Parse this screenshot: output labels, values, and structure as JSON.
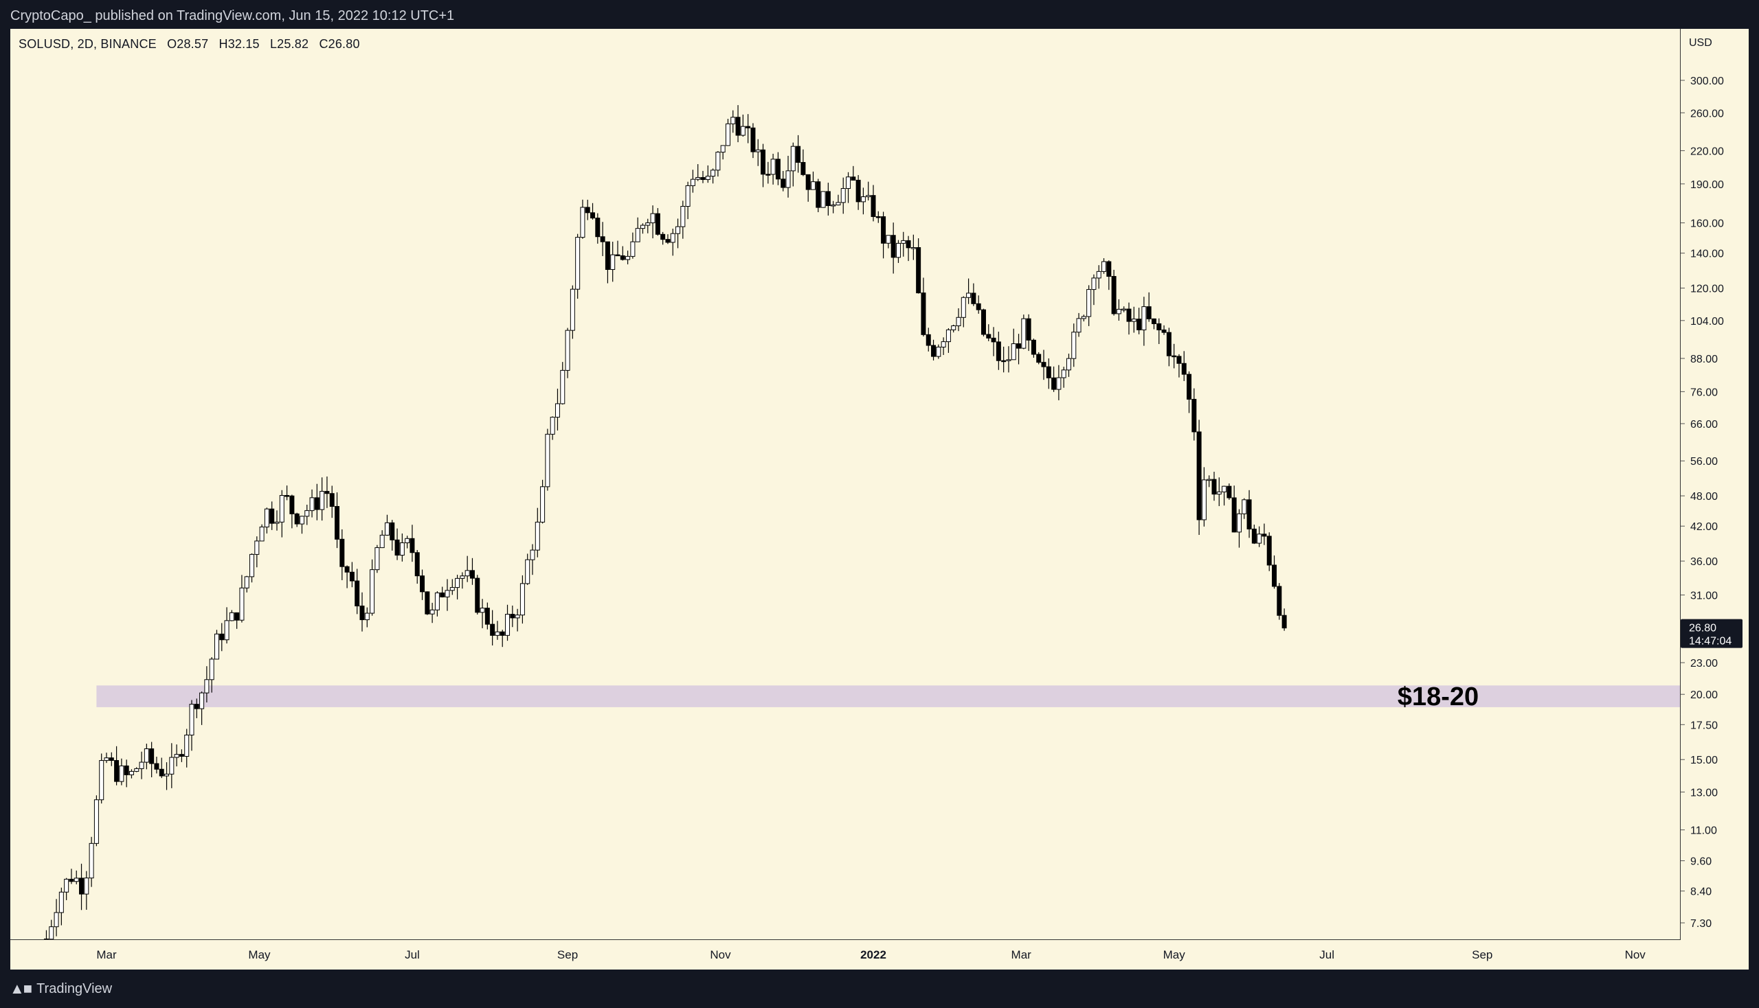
{
  "header": {
    "published_text": "CryptoCapo_  published on TradingView.com, Jun 15, 2022 10:12 UTC+1"
  },
  "legend": {
    "symbol_line": "SOLUSD, 2D, BINANCE",
    "open": "O28.57",
    "high": "H32.15",
    "low": "L25.82",
    "close": "C26.80"
  },
  "price_axis": {
    "currency": "USD",
    "ticks": [
      "300.00",
      "260.00",
      "220.00",
      "190.00",
      "160.00",
      "140.00",
      "120.00",
      "104.00",
      "88.00",
      "76.00",
      "66.00",
      "56.00",
      "48.00",
      "42.00",
      "36.00",
      "31.00",
      "23.00",
      "20.00",
      "17.50",
      "15.00",
      "13.00",
      "11.00",
      "9.60",
      "8.40",
      "7.30"
    ],
    "last_price": "26.80",
    "countdown": "14:47:04"
  },
  "time_axis": {
    "ticks": [
      "Mar",
      "May",
      "Jul",
      "Sep",
      "Nov",
      "2022",
      "Mar",
      "May",
      "Jul",
      "Sep",
      "Nov"
    ]
  },
  "annotation": {
    "zone_label": "$18-20",
    "zone_low": 18.9,
    "zone_high": 20.8,
    "zone_color": "#ddd0df"
  },
  "colors": {
    "background": "#fbf6df",
    "candle_up_fill": "#ffffff",
    "candle_down_fill": "#000000",
    "candle_border": "#000000",
    "last_price_bg": "#131722"
  },
  "footer": {
    "brand": "TradingView",
    "logo_icon": "tradingview-logo-icon"
  },
  "chart_data": {
    "type": "candlestick",
    "symbol": "SOLUSD",
    "interval": "2D",
    "exchange": "BINANCE",
    "y_scale": "log",
    "ylim": [
      6.5,
      330
    ],
    "x_ticks": [
      {
        "label": "Mar",
        "date": "2021-03-01"
      },
      {
        "label": "May",
        "date": "2021-05-01"
      },
      {
        "label": "Jul",
        "date": "2021-07-01"
      },
      {
        "label": "Sep",
        "date": "2021-09-01"
      },
      {
        "label": "Nov",
        "date": "2021-11-01"
      },
      {
        "label": "2022",
        "date": "2022-01-01"
      },
      {
        "label": "Mar",
        "date": "2022-03-01"
      },
      {
        "label": "May",
        "date": "2022-05-01"
      },
      {
        "label": "Jul",
        "date": "2022-07-01"
      },
      {
        "label": "Sep",
        "date": "2022-09-01"
      },
      {
        "label": "Nov",
        "date": "2022-11-01"
      }
    ],
    "close_path": [
      [
        "2021-02-05",
        6.8
      ],
      [
        "2021-02-10",
        8.3
      ],
      [
        "2021-02-15",
        9.0
      ],
      [
        "2021-02-20",
        8.6
      ],
      [
        "2021-02-24",
        11.5
      ],
      [
        "2021-02-28",
        15.3
      ],
      [
        "2021-03-04",
        14.3
      ],
      [
        "2021-03-10",
        13.8
      ],
      [
        "2021-03-16",
        15.2
      ],
      [
        "2021-03-22",
        14.3
      ],
      [
        "2021-03-28",
        14.5
      ],
      [
        "2021-04-01",
        16.5
      ],
      [
        "2021-04-05",
        19.5
      ],
      [
        "2021-04-09",
        20.5
      ],
      [
        "2021-04-13",
        24.5
      ],
      [
        "2021-04-17",
        27.0
      ],
      [
        "2021-04-21",
        28.0
      ],
      [
        "2021-04-25",
        32.0
      ],
      [
        "2021-04-29",
        39.0
      ],
      [
        "2021-05-03",
        45.0
      ],
      [
        "2021-05-07",
        44.0
      ],
      [
        "2021-05-11",
        48.0
      ],
      [
        "2021-05-15",
        44.0
      ],
      [
        "2021-05-19",
        45.0
      ],
      [
        "2021-05-23",
        46.0
      ],
      [
        "2021-05-27",
        50.0
      ],
      [
        "2021-05-31",
        45.0
      ],
      [
        "2021-06-02",
        33.0
      ],
      [
        "2021-06-06",
        35.0
      ],
      [
        "2021-06-10",
        27.0
      ],
      [
        "2021-06-14",
        31.0
      ],
      [
        "2021-06-18",
        40.0
      ],
      [
        "2021-06-22",
        41.0
      ],
      [
        "2021-06-26",
        37.0
      ],
      [
        "2021-06-30",
        39.0
      ],
      [
        "2021-07-04",
        34.0
      ],
      [
        "2021-07-08",
        27.5
      ],
      [
        "2021-07-12",
        31.0
      ],
      [
        "2021-07-16",
        33.5
      ],
      [
        "2021-07-20",
        34.0
      ],
      [
        "2021-07-24",
        33.0
      ],
      [
        "2021-07-28",
        29.0
      ],
      [
        "2021-08-01",
        27.5
      ],
      [
        "2021-08-05",
        25.0
      ],
      [
        "2021-08-09",
        28.0
      ],
      [
        "2021-08-13",
        30.0
      ],
      [
        "2021-08-17",
        38.0
      ],
      [
        "2021-08-21",
        43.0
      ],
      [
        "2021-08-25",
        68.0
      ],
      [
        "2021-08-29",
        75.0
      ],
      [
        "2021-09-02",
        110.0
      ],
      [
        "2021-09-06",
        165.0
      ],
      [
        "2021-09-10",
        180.0
      ],
      [
        "2021-09-14",
        150.0
      ],
      [
        "2021-09-18",
        130.0
      ],
      [
        "2021-09-22",
        140.0
      ],
      [
        "2021-09-26",
        135.0
      ],
      [
        "2021-09-30",
        160.0
      ],
      [
        "2021-10-04",
        170.0
      ],
      [
        "2021-10-08",
        155.0
      ],
      [
        "2021-10-12",
        152.0
      ],
      [
        "2021-10-16",
        160.0
      ],
      [
        "2021-10-20",
        200.0
      ],
      [
        "2021-10-24",
        195.0
      ],
      [
        "2021-10-28",
        190.0
      ],
      [
        "2021-11-02",
        230.0
      ],
      [
        "2021-11-06",
        255.0
      ],
      [
        "2021-11-10",
        240.0
      ],
      [
        "2021-11-14",
        225.0
      ],
      [
        "2021-11-18",
        200.0
      ],
      [
        "2021-11-22",
        210.0
      ],
      [
        "2021-11-26",
        195.0
      ],
      [
        "2021-11-30",
        230.0
      ],
      [
        "2021-12-04",
        200.0
      ],
      [
        "2021-12-08",
        185.0
      ],
      [
        "2021-12-12",
        175.0
      ],
      [
        "2021-12-16",
        180.0
      ],
      [
        "2021-12-20",
        185.0
      ],
      [
        "2021-12-24",
        190.0
      ],
      [
        "2021-12-28",
        175.0
      ],
      [
        "2022-01-01",
        170.0
      ],
      [
        "2022-01-05",
        150.0
      ],
      [
        "2022-01-09",
        140.0
      ],
      [
        "2022-01-13",
        145.0
      ],
      [
        "2022-01-17",
        140.0
      ],
      [
        "2022-01-21",
        95.0
      ],
      [
        "2022-01-25",
        92.0
      ],
      [
        "2022-01-29",
        98.0
      ],
      [
        "2022-02-02",
        105.0
      ],
      [
        "2022-02-06",
        115.0
      ],
      [
        "2022-02-10",
        112.0
      ],
      [
        "2022-02-14",
        98.0
      ],
      [
        "2022-02-18",
        92.0
      ],
      [
        "2022-02-22",
        85.0
      ],
      [
        "2022-02-26",
        92.0
      ],
      [
        "2022-03-02",
        100.0
      ],
      [
        "2022-03-06",
        86.0
      ],
      [
        "2022-03-10",
        82.0
      ],
      [
        "2022-03-14",
        80.0
      ],
      [
        "2022-03-18",
        88.0
      ],
      [
        "2022-03-22",
        95.0
      ],
      [
        "2022-03-26",
        110.0
      ],
      [
        "2022-03-30",
        132.0
      ],
      [
        "2022-04-03",
        130.0
      ],
      [
        "2022-04-07",
        112.0
      ],
      [
        "2022-04-11",
        105.0
      ],
      [
        "2022-04-15",
        102.0
      ],
      [
        "2022-04-19",
        106.0
      ],
      [
        "2022-04-23",
        100.0
      ],
      [
        "2022-04-27",
        98.0
      ],
      [
        "2022-05-01",
        87.0
      ],
      [
        "2022-05-05",
        82.0
      ],
      [
        "2022-05-09",
        65.0
      ],
      [
        "2022-05-11",
        45.0
      ],
      [
        "2022-05-13",
        52.0
      ],
      [
        "2022-05-17",
        50.0
      ],
      [
        "2022-05-21",
        48.0
      ],
      [
        "2022-05-25",
        43.0
      ],
      [
        "2022-05-29",
        46.0
      ],
      [
        "2022-06-02",
        39.0
      ],
      [
        "2022-06-06",
        40.0
      ],
      [
        "2022-06-10",
        33.0
      ],
      [
        "2022-06-14",
        26.8
      ]
    ]
  }
}
